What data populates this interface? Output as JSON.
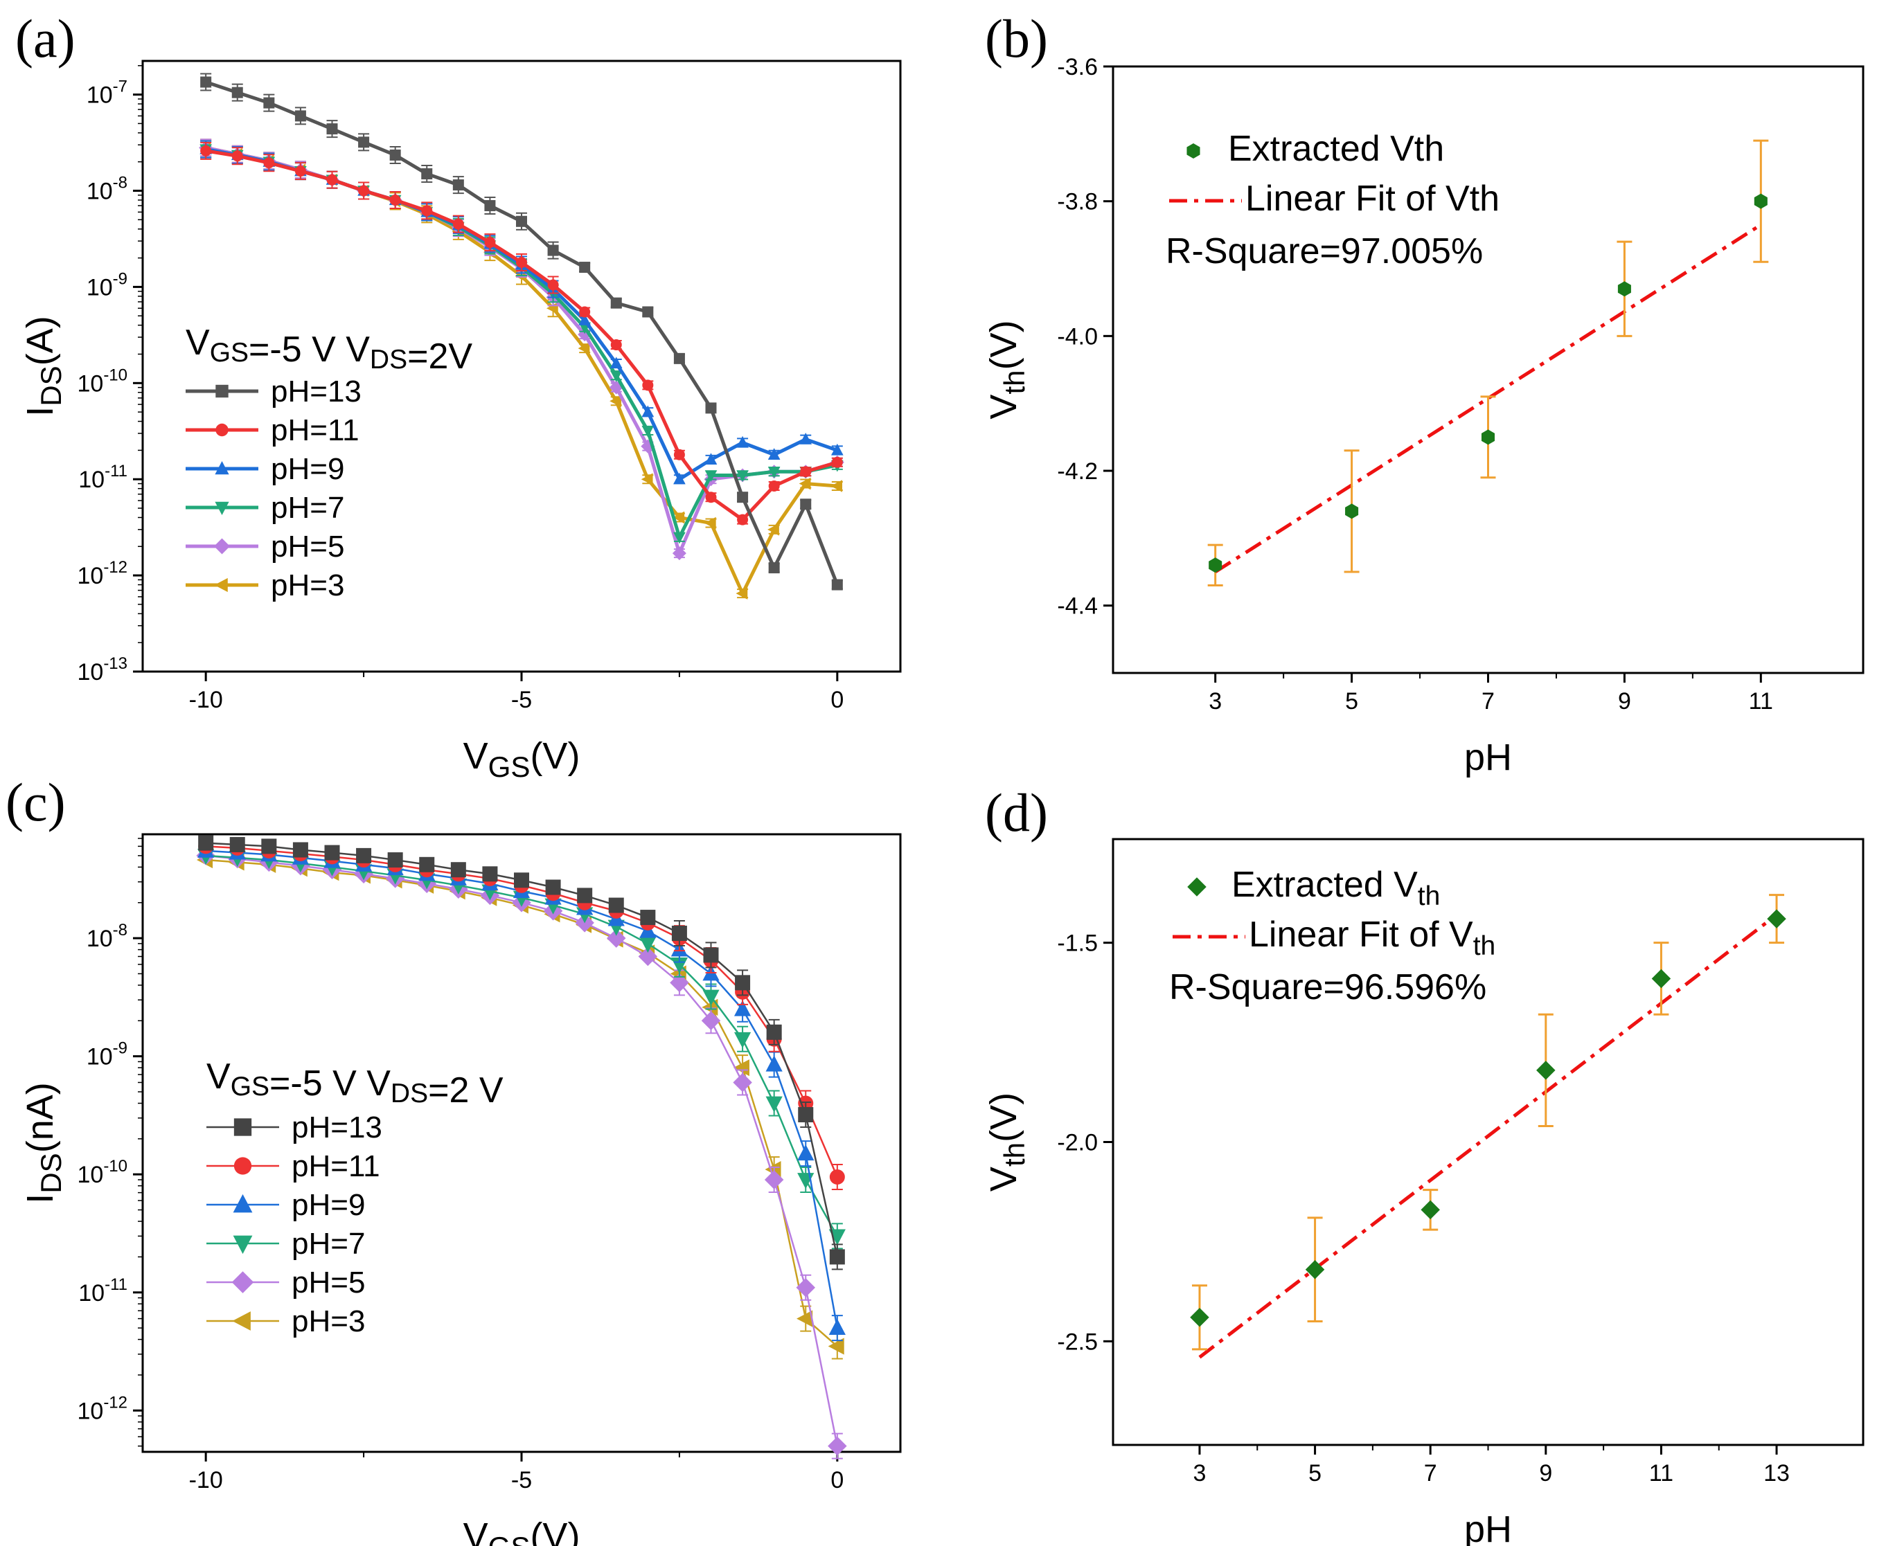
{
  "chart_data": [
    {
      "panel": "(a)",
      "type": "line",
      "yscale": "log",
      "xlabel": "VGS(V)",
      "ylabel": "IDS(A)",
      "xlim": [
        -11,
        1
      ],
      "ylim_exp": [
        -13,
        -6.65
      ],
      "xticks": [
        -10,
        -5,
        0
      ],
      "yticks_exp": [
        -13,
        -12,
        -11,
        -10,
        -9,
        -8,
        -7
      ],
      "condition": "VGS=-5 V  VDS=2V",
      "x": [
        -10,
        -9.5,
        -9,
        -8.5,
        -8,
        -7.5,
        -7,
        -6.5,
        -6,
        -5.5,
        -5,
        -4.5,
        -4,
        -3.5,
        -3,
        -2.5,
        -2,
        -1.5,
        -1,
        -0.5,
        0
      ],
      "series": [
        {
          "name": "pH=13",
          "color": "#555555",
          "marker": "square",
          "values": [
            1.35e-07,
            1.05e-07,
            8.2e-08,
            6e-08,
            4.4e-08,
            3.2e-08,
            2.35e-08,
            1.5e-08,
            1.15e-08,
            7e-09,
            4.8e-09,
            2.4e-09,
            1.6e-09,
            6.8e-10,
            5.5e-10,
            1.8e-10,
            5.5e-11,
            6.5e-12,
            1.2e-12,
            5.5e-12,
            8e-13
          ]
        },
        {
          "name": "pH=11",
          "color": "#ee3333",
          "marker": "circle",
          "values": [
            2.6e-08,
            2.3e-08,
            1.95e-08,
            1.6e-08,
            1.3e-08,
            1e-08,
            8e-09,
            6.2e-09,
            4.5e-09,
            2.9e-09,
            1.8e-09,
            1.05e-09,
            5.5e-10,
            2.5e-10,
            9.5e-11,
            1.8e-11,
            6.5e-12,
            3.8e-12,
            8.5e-12,
            1.2e-11,
            1.5e-11
          ]
        },
        {
          "name": "pH=9",
          "color": "#1e6fd9",
          "marker": "triangle-up",
          "values": [
            2.7e-08,
            2.35e-08,
            2e-08,
            1.6e-08,
            1.3e-08,
            1e-08,
            8e-09,
            6e-09,
            4.4e-09,
            2.8e-09,
            1.7e-09,
            9.5e-10,
            4.5e-10,
            1.6e-10,
            5e-11,
            1e-11,
            1.6e-11,
            2.4e-11,
            1.8e-11,
            2.6e-11,
            2e-11
          ]
        },
        {
          "name": "pH=7",
          "color": "#22a87a",
          "marker": "triangle-down",
          "values": [
            2.7e-08,
            2.35e-08,
            2e-08,
            1.6e-08,
            1.3e-08,
            1e-08,
            8e-09,
            6e-09,
            4.2e-09,
            2.7e-09,
            1.6e-09,
            8.5e-10,
            3.8e-10,
            1.2e-10,
            3.2e-11,
            2.5e-12,
            1.1e-11,
            1.1e-11,
            1.2e-11,
            1.2e-11,
            1.4e-11
          ]
        },
        {
          "name": "pH=5",
          "color": "#b87de0",
          "marker": "diamond",
          "values": [
            2.8e-08,
            2.4e-08,
            2.05e-08,
            1.65e-08,
            1.3e-08,
            1e-08,
            8e-09,
            6e-09,
            4.1e-09,
            2.6e-09,
            1.55e-09,
            7.8e-10,
            3.2e-10,
            9e-11,
            2.2e-11,
            1.7e-12,
            1e-11,
            1.1e-11,
            1.2e-11,
            1.2e-11,
            1.5e-11
          ]
        },
        {
          "name": "pH=3",
          "color": "#d4a017",
          "marker": "triangle-left",
          "values": [
            2.8e-08,
            2.4e-08,
            2.05e-08,
            1.65e-08,
            1.3e-08,
            1e-08,
            7.8e-09,
            5.7e-09,
            3.8e-09,
            2.3e-09,
            1.3e-09,
            6e-10,
            2.3e-10,
            6.5e-11,
            1e-11,
            4e-12,
            3.5e-12,
            6.5e-13,
            3e-12,
            9e-12,
            8.5e-12
          ]
        }
      ]
    },
    {
      "panel": "(b)",
      "type": "scatter",
      "xlabel": "pH",
      "ylabel": "Vth(V)",
      "xlim": [
        1.5,
        12.5
      ],
      "ylim": [
        -4.5,
        -3.6
      ],
      "xticks": [
        3,
        5,
        7,
        9,
        11
      ],
      "yticks": [
        "-3.6",
        "-3.8",
        "-4.0",
        "-4.2",
        "-4.4"
      ],
      "points": {
        "x": [
          3,
          5,
          7,
          9,
          11
        ],
        "y": [
          -4.34,
          -4.26,
          -4.15,
          -3.93,
          -3.8
        ],
        "err": [
          0.03,
          0.09,
          0.06,
          0.07,
          0.09
        ]
      },
      "fit": {
        "x": [
          3,
          11
        ],
        "y": [
          -4.35,
          -3.835
        ]
      },
      "legend": {
        "point": "Extracted Vth",
        "fit": "Linear Fit of Vth",
        "r2": "R-Square=97.005%"
      },
      "colors": {
        "point": "#1a7a1a",
        "err": "#f0a030",
        "fit": "#ee1111"
      }
    },
    {
      "panel": "(c)",
      "type": "line",
      "yscale": "log",
      "xlabel": "VGS(V)",
      "ylabel": "IDS(nA)",
      "xlim": [
        -11,
        1
      ],
      "ylim_exp": [
        -12.35,
        -7.12
      ],
      "xticks": [
        -10,
        -5,
        0
      ],
      "yticks_exp": [
        -12,
        -11,
        -10,
        -9,
        -8
      ],
      "condition": "VGS=-5 V  VDS=2 V",
      "x": [
        -10,
        -9.5,
        -9,
        -8.5,
        -8,
        -7.5,
        -7,
        -6.5,
        -6,
        -5.5,
        -5,
        -4.5,
        -4,
        -3.5,
        -3,
        -2.5,
        -2,
        -1.5,
        -1,
        -0.5,
        0
      ],
      "series": [
        {
          "name": "pH=13",
          "color": "#444444",
          "marker": "square",
          "values": [
            6.4e-08,
            6.2e-08,
            6e-08,
            5.6e-08,
            5.3e-08,
            5e-08,
            4.6e-08,
            4.2e-08,
            3.8e-08,
            3.5e-08,
            3.1e-08,
            2.7e-08,
            2.3e-08,
            1.9e-08,
            1.5e-08,
            1.1e-08,
            7.2e-09,
            4.2e-09,
            1.6e-09,
            3.2e-10,
            2e-11
          ]
        },
        {
          "name": "pH=11",
          "color": "#ee3333",
          "marker": "circle",
          "values": [
            6e-08,
            5.8e-08,
            5.5e-08,
            5.2e-08,
            4.9e-08,
            4.6e-08,
            4.2e-08,
            3.8e-08,
            3.5e-08,
            3.2e-08,
            2.8e-08,
            2.4e-08,
            2e-08,
            1.7e-08,
            1.35e-08,
            1e-08,
            6.5e-09,
            3.5e-09,
            1.4e-09,
            4e-10,
            9.5e-11
          ]
        },
        {
          "name": "pH=9",
          "color": "#1e6fd9",
          "marker": "triangle-up",
          "values": [
            5.5e-08,
            5.3e-08,
            5.1e-08,
            4.8e-08,
            4.5e-08,
            4.2e-08,
            3.9e-08,
            3.5e-08,
            3.2e-08,
            2.9e-08,
            2.5e-08,
            2.2e-08,
            1.8e-08,
            1.45e-08,
            1.15e-08,
            8e-09,
            5e-09,
            2.5e-09,
            8.5e-10,
            1.5e-10,
            5e-12
          ]
        },
        {
          "name": "pH=7",
          "color": "#22a87a",
          "marker": "triangle-down",
          "values": [
            5e-08,
            4.8e-08,
            4.6e-08,
            4.3e-08,
            4e-08,
            3.7e-08,
            3.4e-08,
            3.1e-08,
            2.8e-08,
            2.5e-08,
            2.2e-08,
            1.9e-08,
            1.6e-08,
            1.25e-08,
            9e-09,
            6e-09,
            3.2e-09,
            1.4e-09,
            4e-10,
            9e-11,
            3e-11
          ]
        },
        {
          "name": "pH=5",
          "color": "#b87de0",
          "marker": "diamond",
          "values": [
            5e-08,
            4.7e-08,
            4.4e-08,
            4.1e-08,
            3.8e-08,
            3.5e-08,
            3.2e-08,
            2.9e-08,
            2.6e-08,
            2.3e-08,
            2e-08,
            1.7e-08,
            1.35e-08,
            1e-08,
            7e-09,
            4.2e-09,
            2e-09,
            6e-10,
            9e-11,
            1.1e-11,
            5e-13
          ]
        },
        {
          "name": "pH=3",
          "color": "#c9a020",
          "marker": "triangle-left",
          "values": [
            4.6e-08,
            4.4e-08,
            4.2e-08,
            3.9e-08,
            3.6e-08,
            3.4e-08,
            3.1e-08,
            2.8e-08,
            2.5e-08,
            2.2e-08,
            1.9e-08,
            1.6e-08,
            1.3e-08,
            9.8e-09,
            7.5e-09,
            5e-09,
            2.6e-09,
            8e-10,
            1.1e-10,
            6e-12,
            3.5e-12
          ]
        }
      ]
    },
    {
      "panel": "(d)",
      "type": "scatter",
      "xlabel": "pH",
      "ylabel": "Vth(V)",
      "xlim": [
        1.5,
        14.5
      ],
      "ylim": [
        -2.76,
        -1.24
      ],
      "xticks": [
        3,
        5,
        7,
        9,
        11,
        13
      ],
      "yticks": [
        "-1.5",
        "-2.0",
        "-2.5"
      ],
      "points": {
        "x": [
          3,
          5,
          7,
          9,
          11,
          13
        ],
        "y": [
          -2.44,
          -2.32,
          -2.17,
          -1.82,
          -1.59,
          -1.44
        ],
        "err": [
          0.08,
          0.13,
          0.05,
          0.14,
          0.09,
          0.06
        ]
      },
      "fit": {
        "x": [
          3,
          13
        ],
        "y": [
          -2.54,
          -1.43
        ]
      },
      "legend": {
        "point": "Extracted Vth",
        "fit": "Linear Fit of Vth",
        "r2": "R-Square=96.596%"
      },
      "colors": {
        "point": "#1a7a1a",
        "err": "#f0a030",
        "fit": "#ee1111"
      }
    }
  ]
}
